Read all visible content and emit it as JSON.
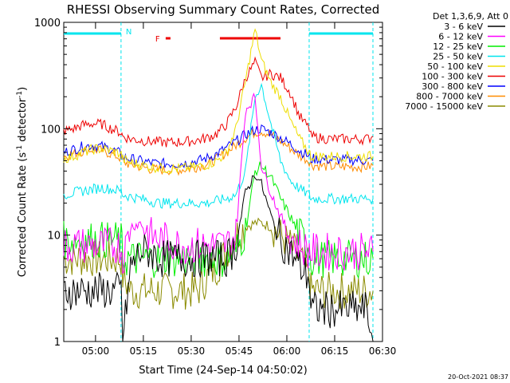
{
  "chart_data": {
    "type": "line",
    "title": "RHESSI Observing Summary Count Rates, Corrected",
    "xlabel": "Start Time (24-Sep-14 04:50:02)",
    "ylabel": "Corrected Count Rate (s⁻¹ detector⁻¹)",
    "ylabel_pre": "Corrected Count Rate (s",
    "ylabel_mid": " detector",
    "ylabel_post": ")",
    "ylabel_exp": "-1",
    "y_scale": "log",
    "ylim": [
      1,
      1000
    ],
    "xlim": [
      "04:50:02",
      "06:30:00"
    ],
    "x_ticks": [
      "05:00",
      "05:15",
      "05:30",
      "05:45",
      "06:00",
      "06:15",
      "06:30"
    ],
    "y_ticks": [
      "1",
      "10",
      "100",
      "1000"
    ],
    "legend_title": "Det 1,3,6,9, Att 0",
    "legend_position": "right",
    "timestamp": "20-Oct-2021 08:37",
    "flags": [
      {
        "label": "N",
        "color": "#00e5ee",
        "segments": [
          [
            "04:50:02",
            "05:08:00"
          ],
          [
            "06:07:00",
            "06:27:00"
          ]
        ]
      },
      {
        "label": "F",
        "color": "#ee0000",
        "segments": [
          [
            "05:22:00",
            "05:23:30"
          ],
          [
            "05:39:00",
            "05:58:00"
          ]
        ]
      }
    ],
    "night_bounds": [
      "05:08:00",
      "06:07:00",
      "06:27:00"
    ],
    "series": [
      {
        "name": "3 - 6 keV",
        "color": "#000000",
        "values": [
          3,
          3,
          3,
          3,
          3,
          3,
          3,
          1,
          5,
          7,
          7,
          6,
          6,
          6,
          6,
          6,
          6,
          6,
          6,
          8,
          25,
          38,
          30,
          15,
          9,
          7,
          5,
          4,
          2,
          2,
          2,
          2,
          2,
          2,
          1
        ]
      },
      {
        "name": "6 - 12 keV",
        "color": "#ff00ff",
        "values": [
          8,
          8,
          8,
          8,
          8,
          8,
          8,
          6,
          12,
          13,
          10,
          9,
          9,
          8,
          8,
          8,
          8,
          8,
          8,
          10,
          150,
          200,
          45,
          25,
          15,
          10,
          8,
          7,
          7,
          7,
          7,
          7,
          7,
          7,
          7
        ]
      },
      {
        "name": "12 - 25 keV",
        "color": "#00ee00",
        "values": [
          9,
          9,
          9,
          9,
          9,
          9,
          9,
          6,
          6,
          6,
          6,
          6,
          6,
          6,
          6,
          6,
          6,
          6,
          6,
          7,
          11,
          40,
          45,
          35,
          22,
          15,
          10,
          8,
          6,
          6,
          6,
          6,
          6,
          6,
          6
        ]
      },
      {
        "name": "25 - 50 keV",
        "color": "#00e5ee",
        "values": [
          24,
          25,
          26,
          27,
          28,
          27,
          26,
          24,
          23,
          22,
          21,
          20,
          20,
          20,
          20,
          20,
          20,
          21,
          22,
          24,
          40,
          200,
          260,
          110,
          50,
          33,
          27,
          24,
          22,
          22,
          22,
          22,
          22,
          22,
          22
        ]
      },
      {
        "name": "50 - 100 keV",
        "color": "#eedd00",
        "values": [
          52,
          55,
          60,
          64,
          65,
          62,
          58,
          52,
          48,
          46,
          44,
          43,
          42,
          42,
          43,
          44,
          46,
          50,
          60,
          100,
          280,
          850,
          440,
          270,
          200,
          120,
          80,
          60,
          55,
          55,
          55,
          55,
          55,
          55,
          55
        ]
      },
      {
        "name": "100 - 300 keV",
        "color": "#ee0000",
        "values": [
          95,
          100,
          108,
          112,
          110,
          100,
          92,
          85,
          80,
          78,
          76,
          75,
          74,
          75,
          76,
          78,
          82,
          90,
          110,
          160,
          300,
          420,
          300,
          330,
          300,
          220,
          130,
          100,
          85,
          82,
          80,
          80,
          80,
          80,
          85
        ]
      },
      {
        "name": "300 - 800 keV",
        "color": "#0000ff",
        "values": [
          60,
          64,
          68,
          70,
          68,
          64,
          58,
          54,
          52,
          50,
          48,
          47,
          47,
          47,
          48,
          50,
          53,
          58,
          66,
          76,
          88,
          98,
          100,
          92,
          82,
          72,
          62,
          55,
          52,
          52,
          51,
          51,
          51,
          50,
          50
        ]
      },
      {
        "name": "800 - 7000 keV",
        "color": "#ff8c00",
        "values": [
          55,
          58,
          62,
          64,
          62,
          58,
          53,
          49,
          46,
          44,
          42,
          41,
          41,
          41,
          42,
          44,
          47,
          52,
          60,
          70,
          82,
          93,
          95,
          88,
          77,
          66,
          56,
          50,
          46,
          45,
          44,
          44,
          44,
          44,
          45
        ]
      },
      {
        "name": "7000 - 15000 keV",
        "color": "#8b8b00",
        "values": [
          6,
          6,
          6,
          6,
          6,
          6,
          6,
          4,
          3,
          3,
          3,
          3,
          3,
          3,
          3,
          3,
          4,
          5,
          7,
          10,
          12,
          13,
          13,
          12,
          10,
          8,
          6,
          4,
          3,
          3,
          3,
          3,
          3,
          3,
          3
        ]
      }
    ],
    "x_minutes": [
      0,
      3,
      6,
      9,
      12,
      15,
      18,
      18.5,
      21,
      24,
      27,
      30,
      33,
      36,
      39,
      42,
      45,
      48,
      51,
      54,
      57,
      60,
      62,
      65,
      68,
      71,
      74,
      77,
      77.5,
      80,
      84,
      88,
      92,
      95,
      97
    ]
  }
}
